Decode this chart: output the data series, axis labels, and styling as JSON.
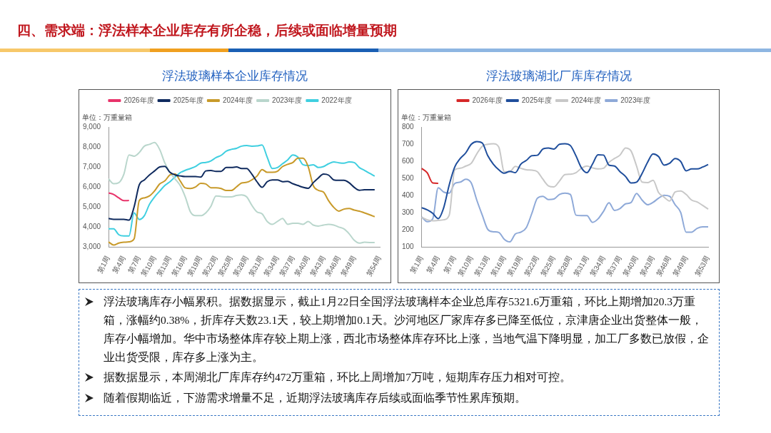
{
  "chart_data": [
    {
      "type": "line",
      "title": "浮法玻璃样本企业库存情况",
      "ylabel": "单位：万重量箱",
      "legend": "top",
      "grid": false,
      "marker": "none",
      "line_style": "solid",
      "categories": [
        "第1周",
        null,
        null,
        "第4周",
        null,
        null,
        "第7周",
        null,
        null,
        "第10周",
        null,
        null,
        "第13周",
        null,
        null,
        "第16周",
        null,
        null,
        "第19周",
        null,
        null,
        "第22周",
        null,
        null,
        "第25周",
        null,
        null,
        "第28周",
        null,
        null,
        "第31周",
        null,
        null,
        "第34周",
        null,
        null,
        "第37周",
        null,
        null,
        "第40周",
        null,
        null,
        "第43周",
        null,
        null,
        "第46周",
        null,
        null,
        "第49周",
        null,
        null,
        null,
        null,
        "第54周"
      ],
      "ylim": [
        3000,
        9000
      ],
      "yticks": [
        {
          "value": 3000,
          "label": "3,000"
        },
        {
          "value": 4000,
          "label": "4,000"
        },
        {
          "value": 5000,
          "label": "5,000"
        },
        {
          "value": 6000,
          "label": "6,000"
        },
        {
          "value": 7000,
          "label": "7,000"
        },
        {
          "value": 8000,
          "label": "8,000"
        },
        {
          "value": 9000,
          "label": "9,000"
        }
      ],
      "series": [
        {
          "name": "2026年度",
          "color": "#e8336a",
          "values": [
            5700,
            5620,
            5450,
            5310,
            5320,
            null,
            null,
            null,
            null,
            null,
            null,
            null,
            null,
            null,
            null,
            null,
            null,
            null,
            null,
            null,
            null,
            null,
            null,
            null,
            null,
            null,
            null,
            null,
            null,
            null,
            null,
            null,
            null,
            null,
            null,
            null,
            null,
            null,
            null,
            null,
            null,
            null,
            null,
            null,
            null,
            null,
            null,
            null,
            null,
            null,
            null,
            null,
            null,
            null
          ]
        },
        {
          "name": "2025年度",
          "color": "#0f2a5e",
          "values": [
            4420,
            4380,
            4380,
            4380,
            4340,
            5000,
            6100,
            6350,
            6600,
            6800,
            7000,
            7030,
            6730,
            6600,
            6550,
            6520,
            6520,
            6520,
            6490,
            6800,
            6820,
            6780,
            6780,
            6970,
            6970,
            7000,
            6920,
            6920,
            6640,
            6260,
            5980,
            6260,
            6350,
            6350,
            6260,
            6280,
            6160,
            6070,
            5980,
            5930,
            6210,
            6450,
            6640,
            6590,
            6350,
            6330,
            6330,
            6210,
            5980,
            5830,
            5860,
            5860,
            5860,
            null
          ]
        },
        {
          "name": "2024年度",
          "color": "#c89a2a",
          "values": [
            3250,
            3090,
            3190,
            3230,
            3250,
            3400,
            5310,
            5450,
            5550,
            5800,
            6150,
            6300,
            6600,
            6650,
            6300,
            5950,
            5920,
            6000,
            6180,
            6150,
            5960,
            5960,
            5920,
            5820,
            5820,
            6000,
            6200,
            6230,
            6350,
            6540,
            6870,
            6730,
            6730,
            6780,
            7020,
            7130,
            7220,
            7440,
            7440,
            7020,
            6070,
            5830,
            5740,
            5310,
            4980,
            4790,
            4890,
            4920,
            4840,
            4790,
            4700,
            4610,
            4510,
            null
          ]
        },
        {
          "name": "2023年度",
          "color": "#b9d6cc",
          "values": [
            6400,
            6160,
            6210,
            6640,
            7600,
            7540,
            7720,
            8040,
            8130,
            8220,
            7870,
            7200,
            6730,
            6400,
            6070,
            5500,
            4750,
            4560,
            4560,
            4700,
            5030,
            5550,
            5520,
            5500,
            5500,
            5570,
            5600,
            5500,
            5080,
            4750,
            4650,
            4270,
            4130,
            4270,
            4420,
            4130,
            4180,
            4180,
            4130,
            4270,
            4090,
            4040,
            4090,
            4130,
            4090,
            3990,
            3900,
            3660,
            3330,
            3190,
            3230,
            3220,
            3220,
            null
          ]
        },
        {
          "name": "2022年度",
          "color": "#3fcfe0",
          "values": [
            3900,
            3900,
            3610,
            3550,
            3550,
            4700,
            4370,
            4560,
            5130,
            5500,
            5790,
            6070,
            6260,
            6500,
            6710,
            6830,
            6920,
            7020,
            7190,
            7220,
            7300,
            7470,
            7580,
            7790,
            7880,
            7930,
            8040,
            8070,
            8040,
            8050,
            8100,
            7490,
            6920,
            6970,
            7160,
            7350,
            7600,
            7490,
            7110,
            7070,
            7110,
            6970,
            7020,
            7160,
            7250,
            7210,
            7190,
            7250,
            7220,
            6970,
            6830,
            6680,
            6540,
            null
          ]
        }
      ]
    },
    {
      "type": "line",
      "title": "浮法玻璃湖北厂库库存情况",
      "ylabel": "单位：万重量箱",
      "legend": "top",
      "grid": false,
      "marker": "none",
      "line_style": "solid",
      "categories": [
        "第1周",
        null,
        null,
        "第4周",
        null,
        null,
        "第7周",
        null,
        null,
        "第10周",
        null,
        null,
        "第13周",
        null,
        null,
        "第16周",
        null,
        null,
        "第19周",
        null,
        null,
        "第22周",
        null,
        null,
        "第25周",
        null,
        null,
        "第28周",
        null,
        null,
        "第31周",
        null,
        null,
        "第34周",
        null,
        null,
        "第37周",
        null,
        null,
        "第40周",
        null,
        null,
        "第43周",
        null,
        null,
        "第46周",
        null,
        null,
        "第49周",
        null,
        null,
        null,
        "第53周"
      ],
      "ylim": [
        100,
        800
      ],
      "yticks": [
        100,
        200,
        300,
        400,
        500,
        600,
        700,
        800
      ],
      "series": [
        {
          "name": "2026年度",
          "color": "#d62728",
          "values": [
            558,
            533,
            473,
            471,
            null,
            null,
            null,
            null,
            null,
            null,
            null,
            null,
            null,
            null,
            null,
            null,
            null,
            null,
            null,
            null,
            null,
            null,
            null,
            null,
            null,
            null,
            null,
            null,
            null,
            null,
            null,
            null,
            null,
            null,
            null,
            null,
            null,
            null,
            null,
            null,
            null,
            null,
            null,
            null,
            null,
            null,
            null,
            null,
            null,
            null,
            null,
            null,
            null
          ]
        },
        {
          "name": "2025年度",
          "color": "#1f4e9c",
          "values": [
            329,
            316,
            296,
            265,
            329,
            462,
            566,
            616,
            649,
            699,
            715,
            706,
            632,
            583,
            550,
            530,
            541,
            533,
            583,
            605,
            632,
            635,
            671,
            677,
            671,
            699,
            702,
            691,
            632,
            561,
            533,
            583,
            638,
            636,
            577,
            572,
            539,
            511,
            473,
            478,
            528,
            594,
            643,
            627,
            577,
            588,
            616,
            599,
            544,
            555,
            555,
            566,
            581
          ]
        },
        {
          "name": "2024年度",
          "color": "#c8c8c8",
          "values": [
            272,
            258,
            252,
            254,
            258,
            285,
            550,
            559,
            572,
            588,
            643,
            688,
            699,
            702,
            682,
            539,
            539,
            570,
            559,
            550,
            548,
            539,
            495,
            456,
            450,
            484,
            522,
            524,
            533,
            559,
            572,
            561,
            555,
            559,
            594,
            616,
            636,
            677,
            660,
            572,
            478,
            475,
            489,
            417,
            390,
            368,
            420,
            426,
            406,
            373,
            362,
            342,
            320
          ]
        },
        {
          "name": "2023年度",
          "color": "#8ea9d8",
          "values": [
            274,
            247,
            263,
            445,
            420,
            414,
            470,
            478,
            495,
            473,
            373,
            285,
            202,
            188,
            184,
            144,
            129,
            175,
            186,
            213,
            296,
            384,
            395,
            376,
            379,
            406,
            414,
            406,
            285,
            282,
            282,
            243,
            263,
            307,
            357,
            313,
            324,
            351,
            359,
            412,
            373,
            346,
            360,
            384,
            401,
            395,
            346,
            302,
            186,
            186,
            208,
            217,
            217
          ]
        }
      ]
    },
    {
      "type": "other",
      "title": "四、需求端：浮法样本企业库存有所企稳，后续或面临增量预期",
      "annotations": [
        "浮法玻璃库存小幅累积。据数据显示，截止1月22日全国浮法玻璃样本企业总库存5321.6万重箱，环比上期增加20.3万重箱，涨幅约0.38%，折库存天数23.1天，较上期增加0.1天。沙河地区厂家库存多已降至低位，京津唐企业出货整体一般，库存小幅增加。华中市场整体库存较上期上涨，西北市场整体库存环比上涨，当地气温下降明显，加工厂多数已放假，企业出货受限，库存多上涨为主。",
        "据数据显示，本周湖北厂库库存约472万重箱，环比上周增加7万吨，短期库存压力相对可控。",
        "随着假期临近，下游需求增量不足，近期浮法玻璃库存后续或面临季节性累库预期。"
      ]
    }
  ]
}
